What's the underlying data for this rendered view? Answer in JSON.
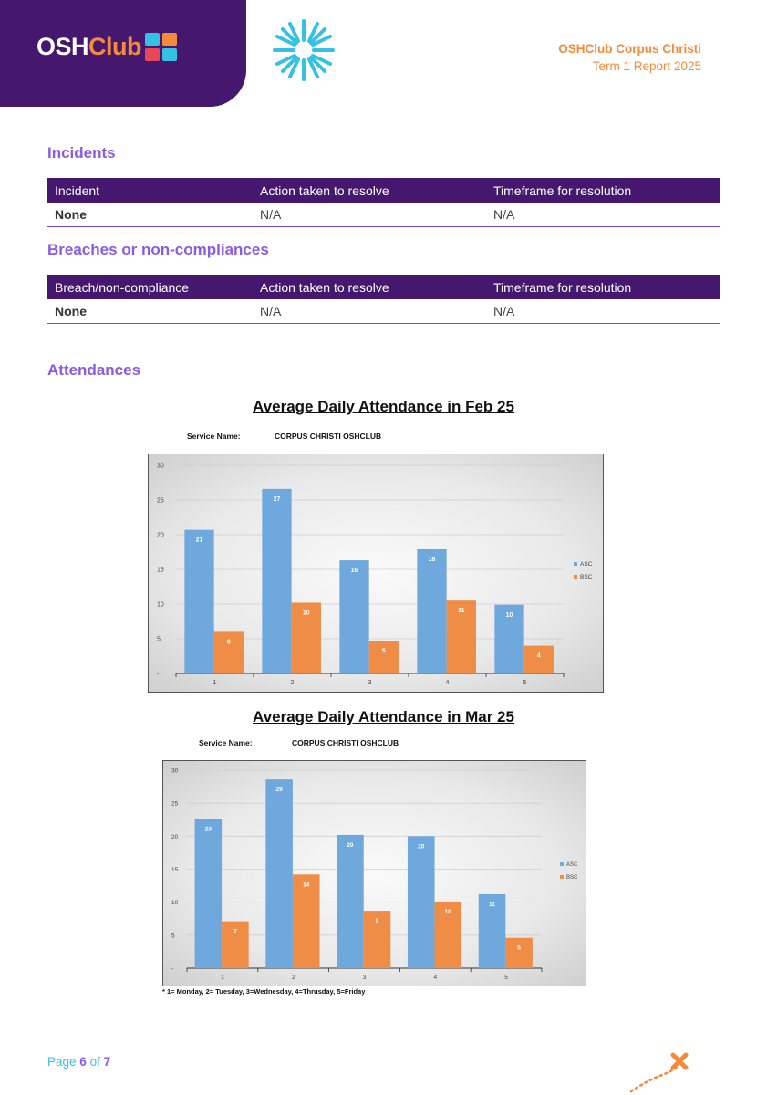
{
  "header": {
    "logo_osh": "OSH",
    "logo_club": "Club",
    "title_line1": "OSHClub Corpus Christi",
    "title_line2": "Term 1 Report 2025"
  },
  "incidents": {
    "heading": "Incidents",
    "columns": [
      "Incident",
      "Action taken to resolve",
      "Timeframe for resolution"
    ],
    "row": [
      "None",
      "N/A",
      "N/A"
    ]
  },
  "breaches": {
    "heading": "Breaches or non-compliances",
    "columns": [
      "Breach/non-compliance",
      "Action taken to resolve",
      "Timeframe for resolution"
    ],
    "row": [
      "None",
      "N/A",
      "N/A"
    ]
  },
  "attendances": {
    "heading": "Attendances",
    "service_label": "Service Name:",
    "service_name": "CORPUS CHRISTI OSHCLUB",
    "footnote": "* 1= Monday, 2= Tuesday, 3=Wednesday, 4=Thrusday, 5=Friday"
  },
  "chart_data": [
    {
      "type": "bar",
      "title": "Average Daily Attendance in Feb 25",
      "categories": [
        "1",
        "2",
        "3",
        "4",
        "5"
      ],
      "series": [
        {
          "name": "ASC",
          "values": [
            20.7,
            26.6,
            16.3,
            17.9,
            9.9
          ],
          "labels": [
            "21",
            "27",
            "16",
            "18",
            "10"
          ]
        },
        {
          "name": "BSC",
          "values": [
            6.0,
            10.2,
            4.7,
            10.5,
            4.0
          ],
          "labels": [
            "6",
            "10",
            "5",
            "11",
            "4"
          ]
        }
      ],
      "y_ticks": [
        "-",
        "5",
        "10",
        "15",
        "20",
        "25",
        "30"
      ],
      "ylim": [
        0,
        30
      ],
      "legend": "right",
      "colors": {
        "ASC": "#6fa8dc",
        "BSC": "#ef8c45"
      }
    },
    {
      "type": "bar",
      "title": "Average Daily Attendance in Mar 25",
      "categories": [
        "1",
        "2",
        "3",
        "4",
        "5"
      ],
      "series": [
        {
          "name": "ASC",
          "values": [
            22.6,
            28.6,
            20.2,
            20.0,
            11.2
          ],
          "labels": [
            "23",
            "29",
            "20",
            "20",
            "11"
          ]
        },
        {
          "name": "BSC",
          "values": [
            7.1,
            14.2,
            8.7,
            10.1,
            4.6
          ],
          "labels": [
            "7",
            "14",
            "9",
            "10",
            "5"
          ]
        }
      ],
      "y_ticks": [
        "-",
        "5",
        "10",
        "15",
        "20",
        "25",
        "30"
      ],
      "ylim": [
        0,
        30
      ],
      "legend": "right",
      "colors": {
        "ASC": "#6fa8dc",
        "BSC": "#ef8c45"
      }
    }
  ],
  "footer": {
    "page_prefix": "Page",
    "page_current": "6",
    "page_of": "of",
    "page_total": "7"
  },
  "colors": {
    "purple": "#45176e",
    "heading_purple": "#8a5be6",
    "orange": "#f58a3c",
    "cyan": "#36c0e6"
  },
  "icons": [
    "sun-icon",
    "dotted-path-x-icon"
  ]
}
